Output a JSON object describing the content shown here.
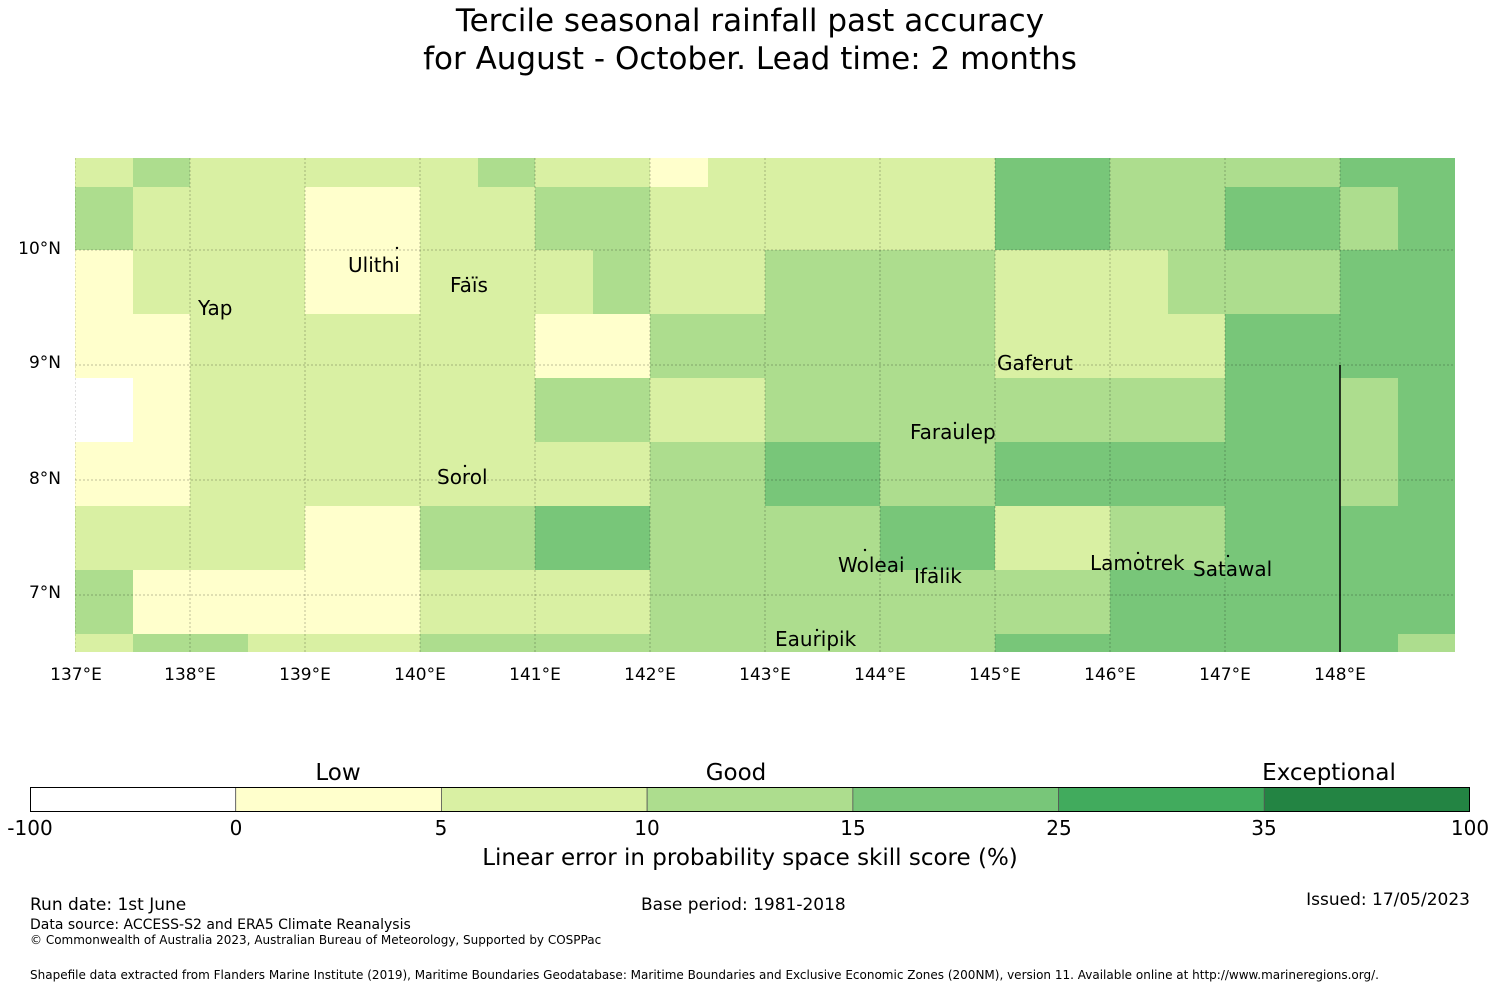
{
  "title": {
    "line1": "Tercile seasonal rainfall past accuracy",
    "line2": "for August - October. Lead time: 2 months"
  },
  "map": {
    "lon_labels": [
      "137°E",
      "138°E",
      "139°E",
      "140°E",
      "141°E",
      "142°E",
      "143°E",
      "144°E",
      "145°E",
      "146°E",
      "147°E",
      "148°E"
    ],
    "lat_labels": [
      "10°N",
      "9°N",
      "8°N",
      "7°N"
    ],
    "places": [
      "Yap",
      "Ulithi",
      "Faïs",
      "Gaferut",
      "Faraulep",
      "Sorol",
      "Woleai",
      "Ifalik",
      "Lamotrek",
      "Satawal",
      "Eauripik"
    ],
    "grid_category_rows": [
      [
        2,
        3,
        2,
        2,
        2,
        2,
        2,
        3,
        2,
        2,
        1,
        2,
        2,
        2,
        2,
        2,
        4,
        4,
        3,
        3,
        3,
        3,
        4,
        4
      ],
      [
        3,
        2,
        2,
        2,
        1,
        1,
        2,
        2,
        3,
        3,
        2,
        2,
        2,
        2,
        2,
        2,
        4,
        4,
        3,
        3,
        4,
        4,
        3,
        4
      ],
      [
        1,
        2,
        2,
        2,
        1,
        1,
        2,
        2,
        2,
        3,
        2,
        2,
        3,
        3,
        3,
        3,
        2,
        2,
        2,
        3,
        3,
        3,
        4,
        4
      ],
      [
        1,
        1,
        2,
        2,
        2,
        2,
        2,
        2,
        1,
        1,
        3,
        3,
        3,
        3,
        3,
        3,
        2,
        2,
        2,
        2,
        4,
        4,
        4,
        4
      ],
      [
        0,
        1,
        2,
        2,
        2,
        2,
        2,
        2,
        3,
        3,
        2,
        2,
        3,
        3,
        3,
        3,
        3,
        3,
        3,
        3,
        4,
        4,
        3,
        4
      ],
      [
        1,
        1,
        2,
        2,
        2,
        2,
        2,
        2,
        2,
        2,
        3,
        3,
        4,
        4,
        3,
        3,
        4,
        4,
        4,
        4,
        4,
        4,
        3,
        4
      ],
      [
        2,
        2,
        2,
        2,
        1,
        1,
        3,
        3,
        4,
        4,
        3,
        3,
        3,
        3,
        4,
        4,
        2,
        2,
        3,
        3,
        4,
        4,
        4,
        4
      ],
      [
        3,
        1,
        1,
        1,
        1,
        1,
        2,
        2,
        2,
        2,
        3,
        3,
        3,
        3,
        3,
        3,
        3,
        3,
        4,
        4,
        4,
        4,
        4,
        4
      ],
      [
        2,
        3,
        3,
        2,
        2,
        2,
        3,
        3,
        3,
        3,
        3,
        3,
        3,
        3,
        3,
        3,
        4,
        4,
        4,
        4,
        4,
        4,
        4,
        3
      ]
    ],
    "vertical_line_lon": 148
  },
  "legend": {
    "categories": [
      "Low",
      "Good",
      "Exceptional"
    ],
    "ticks": [
      "-100",
      "0",
      "5",
      "10",
      "15",
      "25",
      "35",
      "100"
    ],
    "colors": [
      "#ffffff",
      "#ffffcc",
      "#d9f0a3",
      "#addd8e",
      "#78c679",
      "#41ab5d",
      "#238443"
    ],
    "title": "Linear error in probability space skill score (%)"
  },
  "footer": {
    "run_date": "Run date: 1st June",
    "base_period": "Base period: 1981-2018",
    "issued": "Issued: 17/05/2023",
    "data_source": "Data source: ACCESS-S2 and ERA5 Climate Reanalysis",
    "copyright": "© Commonwealth of Australia 2023, Australian Bureau of Meteorology, Supported by COSPPac",
    "shapefile": "Shapefile data extracted from Flanders Marine Institute (2019), Maritime Boundaries Geodatabase: Maritime Boundaries and Exclusive Economic Zones (200NM), version 11. Available online at http://www.marineregions.org/."
  }
}
